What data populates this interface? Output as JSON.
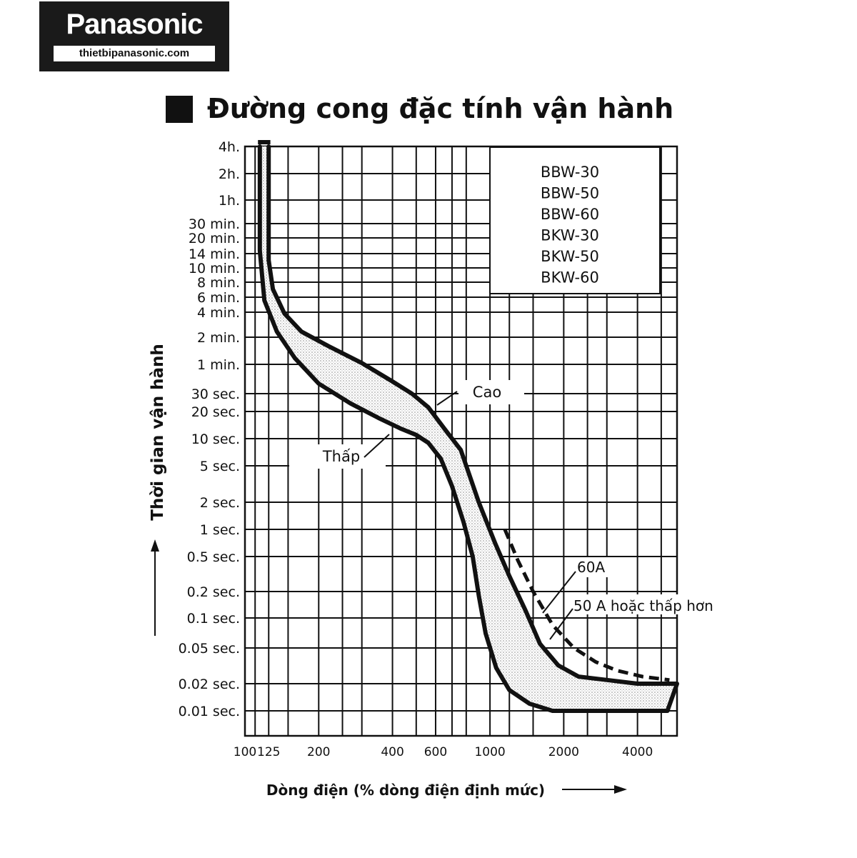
{
  "logo": {
    "brand": "Panasonic",
    "site": "thietbipanasonic.com"
  },
  "chart_data": {
    "type": "line",
    "title": "Đường cong đặc tính vận hành",
    "xlabel": "Dòng điện (% dòng điện định mức)",
    "ylabel": "Thời gian vận hành",
    "x_scale": "log",
    "y_scale": "log",
    "xlim": [
      100,
      5800
    ],
    "x_ticks": [
      {
        "value": 100,
        "label": "100"
      },
      {
        "value": 125,
        "label": "125"
      },
      {
        "value": 200,
        "label": "200"
      },
      {
        "value": 400,
        "label": "400"
      },
      {
        "value": 600,
        "label": "600"
      },
      {
        "value": 1000,
        "label": "1000"
      },
      {
        "value": 2000,
        "label": "2000"
      },
      {
        "value": 4000,
        "label": "4000"
      }
    ],
    "y_ticks": [
      {
        "value": 14400,
        "label": "4h."
      },
      {
        "value": 7200,
        "label": "2h."
      },
      {
        "value": 3600,
        "label": "1h."
      },
      {
        "value": 1800,
        "label": "30 min."
      },
      {
        "value": 1200,
        "label": "20 min."
      },
      {
        "value": 840,
        "label": "14 min."
      },
      {
        "value": 600,
        "label": "10 min."
      },
      {
        "value": 480,
        "label": "8 min."
      },
      {
        "value": 360,
        "label": "6 min."
      },
      {
        "value": 240,
        "label": "4 min."
      },
      {
        "value": 120,
        "label": "2 min."
      },
      {
        "value": 60,
        "label": "1 min."
      },
      {
        "value": 30,
        "label": "30 sec."
      },
      {
        "value": 20,
        "label": "20 sec."
      },
      {
        "value": 10,
        "label": "10 sec."
      },
      {
        "value": 5,
        "label": "5 sec."
      },
      {
        "value": 2,
        "label": "2 sec."
      },
      {
        "value": 1,
        "label": "1 sec."
      },
      {
        "value": 0.5,
        "label": "0.5 sec."
      },
      {
        "value": 0.2,
        "label": "0.2 sec."
      },
      {
        "value": 0.1,
        "label": "0.1 sec."
      },
      {
        "value": 0.05,
        "label": "0.05 sec."
      },
      {
        "value": 0.02,
        "label": "0.02 sec."
      },
      {
        "value": 0.01,
        "label": "0.01 sec."
      }
    ],
    "models": [
      "BBW-30",
      "BBW-50",
      "BBW-60",
      "BKW-30",
      "BKW-50",
      "BKW-60"
    ],
    "series": [
      {
        "name": "Cao",
        "style": "solid",
        "x": [
          125,
          125,
          130,
          145,
          170,
          220,
          300,
          400,
          480,
          560,
          650,
          760,
          900,
          1050,
          1200,
          1400,
          1600,
          1900,
          2300,
          3000,
          4000,
          5800
        ],
        "y": [
          14400,
          720,
          420,
          230,
          140,
          95,
          62,
          40,
          30,
          22,
          13,
          7.5,
          2,
          0.7,
          0.3,
          0.12,
          0.055,
          0.032,
          0.024,
          0.022,
          0.02,
          0.02
        ]
      },
      {
        "name": "Thấp",
        "style": "solid",
        "x": [
          115,
          115,
          120,
          135,
          160,
          200,
          270,
          350,
          430,
          500,
          560,
          630,
          700,
          780,
          850,
          900,
          960,
          1060,
          1200,
          1450,
          1800,
          2500,
          3500,
          5300
        ],
        "y": [
          14400,
          900,
          330,
          140,
          70,
          38,
          24,
          17,
          13,
          11,
          9,
          6,
          3,
          1.2,
          0.5,
          0.18,
          0.07,
          0.03,
          0.017,
          0.012,
          0.01,
          0.01,
          0.01,
          0.01
        ]
      },
      {
        "name": "60A",
        "style": "dashed",
        "x": [
          1150,
          1300,
          1500,
          1800,
          2200,
          2700,
          3300,
          4200,
          5400
        ],
        "y": [
          1,
          0.45,
          0.2,
          0.085,
          0.05,
          0.035,
          0.028,
          0.024,
          0.022
        ]
      }
    ],
    "annotations": [
      {
        "text": "Cao"
      },
      {
        "text": "Thấp"
      },
      {
        "text": "60A"
      },
      {
        "text": "50 A hoặc thấp hơn"
      }
    ],
    "grid": true,
    "legend": "top-right"
  }
}
